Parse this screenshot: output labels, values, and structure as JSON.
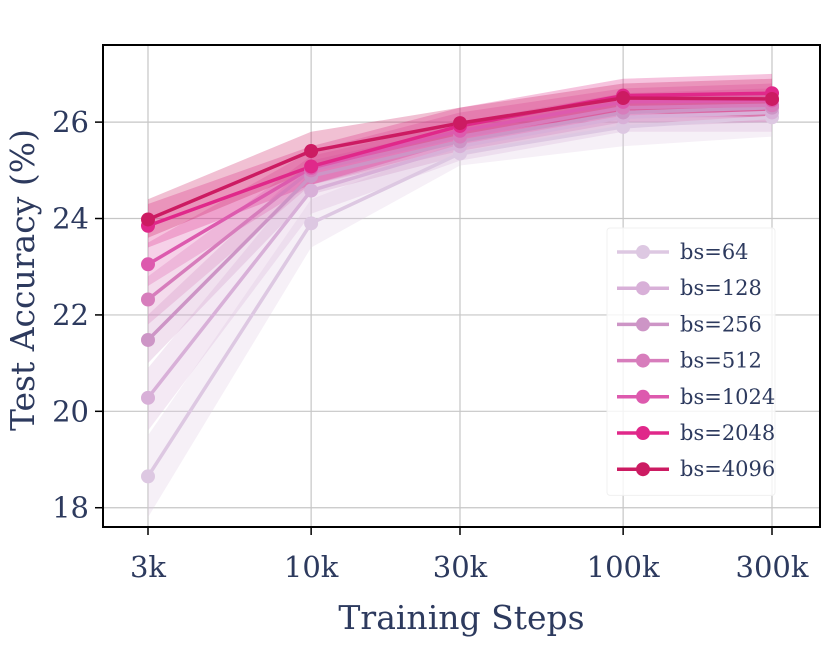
{
  "chart_data": {
    "type": "line",
    "xlabel": "Training Steps",
    "ylabel": "Test Accuracy (%)",
    "x": [
      3000,
      10000,
      30000,
      100000,
      300000
    ],
    "x_tick_labels": [
      "3k",
      "10k",
      "30k",
      "100k",
      "300k"
    ],
    "x_scale": "log",
    "ylim": [
      17.6,
      27.6
    ],
    "y_ticks": [
      18,
      20,
      22,
      24,
      26
    ],
    "grid": true,
    "legend_position": "right",
    "series": [
      {
        "name": "bs=64",
        "color": "#ddc8e2",
        "values": [
          18.65,
          23.9,
          25.35,
          25.9,
          26.1
        ],
        "lower": [
          17.8,
          23.4,
          25.1,
          25.5,
          25.7
        ],
        "upper": [
          19.5,
          24.4,
          25.6,
          26.3,
          26.5
        ]
      },
      {
        "name": "bs=128",
        "color": "#d8b0d8",
        "values": [
          20.28,
          24.58,
          25.5,
          26.1,
          26.2
        ],
        "lower": [
          19.6,
          24.1,
          25.2,
          25.8,
          25.8
        ],
        "upper": [
          20.9,
          25.0,
          25.8,
          26.4,
          26.6
        ]
      },
      {
        "name": "bs=256",
        "color": "#cd95c6",
        "values": [
          21.48,
          24.88,
          25.6,
          26.2,
          26.3
        ],
        "lower": [
          21.0,
          24.5,
          25.3,
          25.9,
          26.0
        ],
        "upper": [
          22.0,
          25.2,
          25.9,
          26.5,
          26.6
        ]
      },
      {
        "name": "bs=512",
        "color": "#d77dbc",
        "values": [
          22.32,
          25.0,
          25.7,
          26.3,
          26.35
        ],
        "lower": [
          21.8,
          24.7,
          25.4,
          26.0,
          26.0
        ],
        "upper": [
          22.8,
          25.3,
          26.0,
          26.6,
          26.7
        ]
      },
      {
        "name": "bs=1024",
        "color": "#dd5aae",
        "values": [
          23.05,
          25.05,
          25.82,
          26.42,
          26.45
        ],
        "lower": [
          22.6,
          24.7,
          25.5,
          26.1,
          26.1
        ],
        "upper": [
          23.5,
          25.4,
          26.2,
          26.7,
          26.8
        ]
      },
      {
        "name": "bs=2048",
        "color": "#e0288a",
        "values": [
          23.85,
          25.08,
          25.92,
          26.55,
          26.6
        ],
        "lower": [
          23.4,
          24.7,
          25.6,
          26.2,
          26.2
        ],
        "upper": [
          24.3,
          25.5,
          26.3,
          26.9,
          27.0
        ]
      },
      {
        "name": "bs=4096",
        "color": "#cc1b62",
        "values": [
          23.98,
          25.4,
          25.98,
          26.5,
          26.48
        ],
        "lower": [
          23.6,
          25.0,
          25.7,
          26.2,
          26.1
        ],
        "upper": [
          24.4,
          25.8,
          26.3,
          26.8,
          26.9
        ]
      }
    ]
  }
}
